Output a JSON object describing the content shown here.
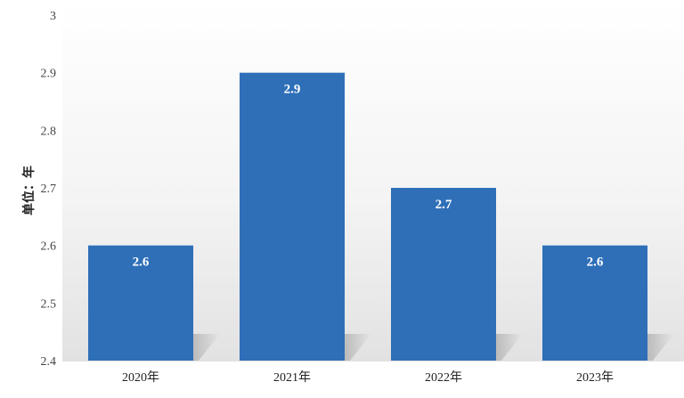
{
  "chart_data": {
    "type": "bar",
    "categories": [
      "2020年",
      "2021年",
      "2022年",
      "2023年"
    ],
    "values": [
      2.6,
      2.9,
      2.7,
      2.6
    ],
    "data_labels": [
      "2.6",
      "2.9",
      "2.7",
      "2.6"
    ],
    "y_ticks": [
      "2.4",
      "2.5",
      "2.6",
      "2.7",
      "2.8",
      "2.9",
      "3"
    ],
    "ylim": [
      2.4,
      3.0
    ],
    "ylabel": "单位：年",
    "xlabel": "",
    "title": "",
    "grid": false,
    "bar_color": "#2e6fb8"
  }
}
